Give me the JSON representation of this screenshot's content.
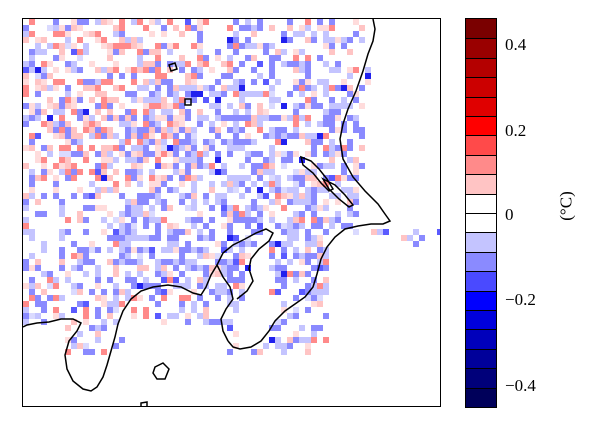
{
  "colorbar": {
    "unit_label": "(°C)",
    "colors": [
      "#7a0000",
      "#9a0000",
      "#b40000",
      "#cc0000",
      "#e00000",
      "#ff0000",
      "#ff4a4a",
      "#ff8a8a",
      "#ffc4c4",
      "#ffffff",
      "#ffffff",
      "#c4c4ff",
      "#8a8aff",
      "#4a4aff",
      "#0000ff",
      "#0000dd",
      "#0000bb",
      "#00009a",
      "#00007a",
      "#00005a"
    ],
    "ticks": [
      {
        "label": "0.4",
        "value": 0.4
      },
      {
        "label": "0.2",
        "value": 0.2
      },
      {
        "label": "0",
        "value": 0.0
      },
      {
        "label": "−0.2",
        "value": -0.2
      },
      {
        "label": "−0.4",
        "value": -0.4
      }
    ],
    "range": [
      -0.45,
      0.45
    ]
  },
  "map": {
    "land_color": "#ffffff",
    "coast_color": "#000000"
  }
}
